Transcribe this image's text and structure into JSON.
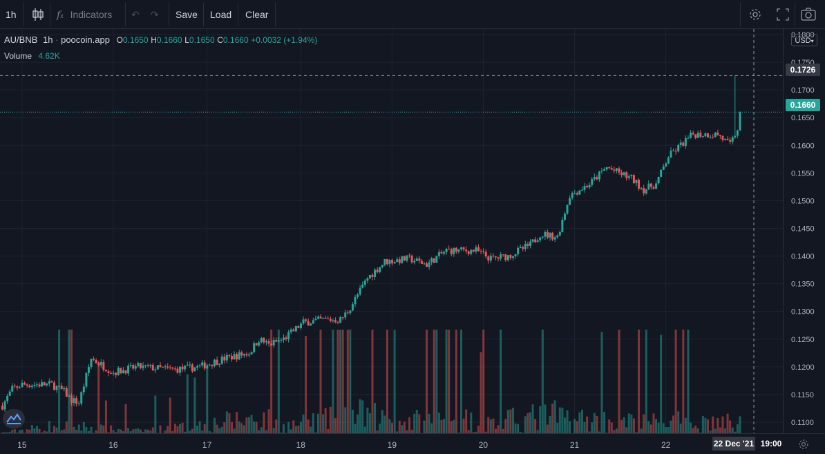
{
  "toolbar": {
    "interval": "1h",
    "indicators_label": "Indicators",
    "save_label": "Save",
    "load_label": "Load",
    "clear_label": "Clear"
  },
  "legend": {
    "symbol": "AU/BNB",
    "interval": "1h",
    "source": "poocoin.app",
    "o_label": "O",
    "o_value": "0.1650",
    "h_label": "H",
    "h_value": "0.1660",
    "l_label": "L",
    "l_value": "0.1650",
    "c_label": "C",
    "c_value": "0.1660",
    "change": "+0.0032 (+1.94%)",
    "volume_label": "Volume",
    "volume_value": "4.62K"
  },
  "currency": "USD",
  "crosshair_price": "0.1726",
  "last_price": "0.1660",
  "crosshair_date": "22 Dec '21",
  "crosshair_time": "19:00",
  "colors": {
    "up": "#26a69a",
    "down": "#ef5350",
    "background": "#131722",
    "grid": "#1f2330"
  },
  "chart_data": {
    "type": "candlestick",
    "title": "AU/BNB",
    "ylim": [
      0.108,
      0.181
    ],
    "y_ticks": [
      "0.1800",
      "0.1750",
      "0.1700",
      "0.1650",
      "0.1600",
      "0.1550",
      "0.1500",
      "0.1450",
      "0.1400",
      "0.1350",
      "0.1300",
      "0.1250",
      "0.1200",
      "0.1150",
      "0.1100"
    ],
    "x_ticks": [
      "15",
      "16",
      "17",
      "18",
      "19",
      "20",
      "21",
      "22"
    ],
    "grid": true,
    "price_anchors": [
      [
        0,
        0.113
      ],
      [
        4,
        0.116
      ],
      [
        8,
        0.1168
      ],
      [
        20,
        0.1168
      ],
      [
        25,
        0.1155
      ],
      [
        28,
        0.114
      ],
      [
        31,
        0.1135
      ],
      [
        36,
        0.1215
      ],
      [
        45,
        0.119
      ],
      [
        55,
        0.12
      ],
      [
        70,
        0.1195
      ],
      [
        80,
        0.12
      ],
      [
        90,
        0.1215
      ],
      [
        100,
        0.1225
      ],
      [
        104,
        0.125
      ],
      [
        108,
        0.124
      ],
      [
        114,
        0.125
      ],
      [
        122,
        0.128
      ],
      [
        130,
        0.1285
      ],
      [
        137,
        0.1285
      ],
      [
        140,
        0.13
      ],
      [
        148,
        0.136
      ],
      [
        155,
        0.139
      ],
      [
        165,
        0.1395
      ],
      [
        172,
        0.1385
      ],
      [
        180,
        0.141
      ],
      [
        192,
        0.141
      ],
      [
        198,
        0.1395
      ],
      [
        205,
        0.14
      ],
      [
        214,
        0.142
      ],
      [
        218,
        0.144
      ],
      [
        225,
        0.1435
      ],
      [
        230,
        0.151
      ],
      [
        238,
        0.153
      ],
      [
        245,
        0.156
      ],
      [
        255,
        0.154
      ],
      [
        260,
        0.152
      ],
      [
        265,
        0.153
      ],
      [
        270,
        0.158
      ],
      [
        280,
        0.162
      ],
      [
        290,
        0.162
      ],
      [
        295,
        0.16
      ],
      [
        298,
        0.163
      ],
      [
        299,
        0.165
      ]
    ],
    "volume_anchors": [
      [
        0,
        0.3
      ],
      [
        12,
        2.2
      ],
      [
        25,
        4.2
      ],
      [
        40,
        2.2
      ],
      [
        55,
        1.2
      ],
      [
        75,
        3.0
      ],
      [
        104,
        7.5
      ],
      [
        115,
        3.5
      ],
      [
        148,
        9.0
      ],
      [
        160,
        5.2
      ],
      [
        185,
        7.5
      ],
      [
        195,
        4.5
      ],
      [
        222,
        8.5
      ],
      [
        235,
        6.5
      ],
      [
        260,
        5.0
      ],
      [
        282,
        6.0
      ],
      [
        298,
        4.6
      ]
    ]
  }
}
